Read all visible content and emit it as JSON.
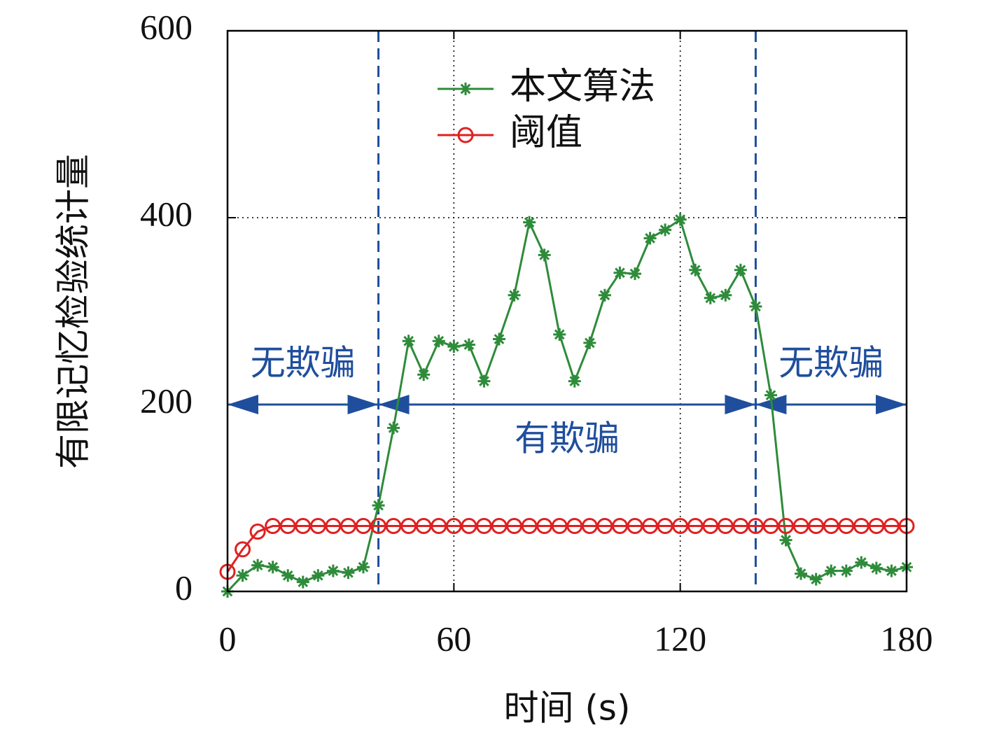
{
  "chart_data": {
    "type": "line",
    "xlabel": "时间 (s)",
    "ylabel": "有限记忆检验统计量",
    "x": [
      0,
      4,
      8,
      12,
      16,
      20,
      24,
      28,
      32,
      36,
      40,
      44,
      48,
      52,
      56,
      60,
      64,
      68,
      72,
      76,
      80,
      84,
      88,
      92,
      96,
      100,
      104,
      108,
      112,
      116,
      120,
      124,
      128,
      132,
      136,
      140,
      144,
      148,
      152,
      156,
      160,
      164,
      168,
      172,
      176,
      180
    ],
    "series": [
      {
        "name": "本文算法",
        "color": "#2e8b3a",
        "marker": "asterisk",
        "values": [
          0,
          17,
          28,
          26,
          17,
          10,
          17,
          22,
          20,
          26,
          92,
          175,
          268,
          232,
          268,
          262,
          264,
          225,
          270,
          317,
          395,
          360,
          275,
          225,
          266,
          317,
          341,
          340,
          378,
          387,
          398,
          344,
          314,
          317,
          344,
          305,
          210,
          55,
          19,
          13,
          22,
          22,
          31,
          25,
          22,
          26
        ]
      },
      {
        "name": "阈值",
        "color": "#e02020",
        "marker": "circle",
        "values": [
          21,
          45,
          64,
          70,
          70,
          70,
          70,
          70,
          70,
          70,
          70,
          70,
          70,
          70,
          70,
          70,
          70,
          70,
          70,
          70,
          70,
          70,
          70,
          70,
          70,
          70,
          70,
          70,
          70,
          70,
          70,
          70,
          70,
          70,
          70,
          70,
          70,
          70,
          70,
          70,
          70,
          70,
          70,
          70,
          70,
          70
        ]
      }
    ],
    "phase_boundaries": [
      40,
      140
    ],
    "phase_labels": [
      "无欺骗",
      "有欺骗",
      "无欺骗"
    ],
    "xlim": [
      0,
      180
    ],
    "xticks": [
      0,
      60,
      120,
      180
    ],
    "ylim": [
      0,
      600
    ],
    "yticks": [
      0,
      200,
      400,
      600
    ],
    "arrow_level": 200,
    "grid": true
  }
}
